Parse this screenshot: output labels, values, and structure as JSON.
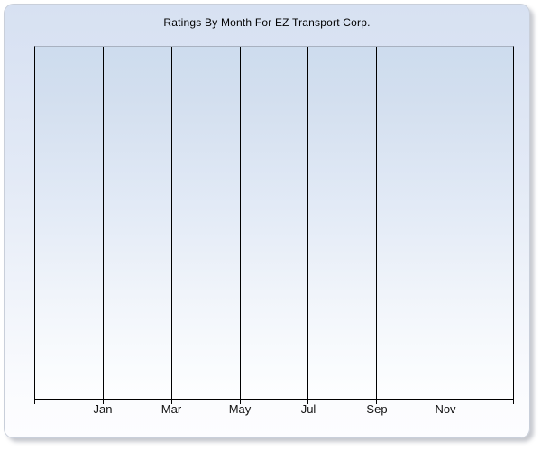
{
  "window": {
    "background_color": "#ffffff",
    "panel_top_color": "#d7e1f2",
    "panel_bottom_color": "#fdfdff"
  },
  "chart_data": {
    "type": "line",
    "title": "Ratings By Month For EZ Transport Corp.",
    "x_tick_labels": [
      "Jan",
      "Mar",
      "May",
      "Jul",
      "Sep",
      "Nov"
    ],
    "y_tick_labels": [],
    "series": [],
    "xlabel": "",
    "ylabel": "",
    "legend": "none",
    "grid": "vertical gridlines only",
    "x_gridline_intervals": 7,
    "plot_border_color": "#000000",
    "plot_top_border_color": "#a8b1c0",
    "text_color": "#000000"
  }
}
